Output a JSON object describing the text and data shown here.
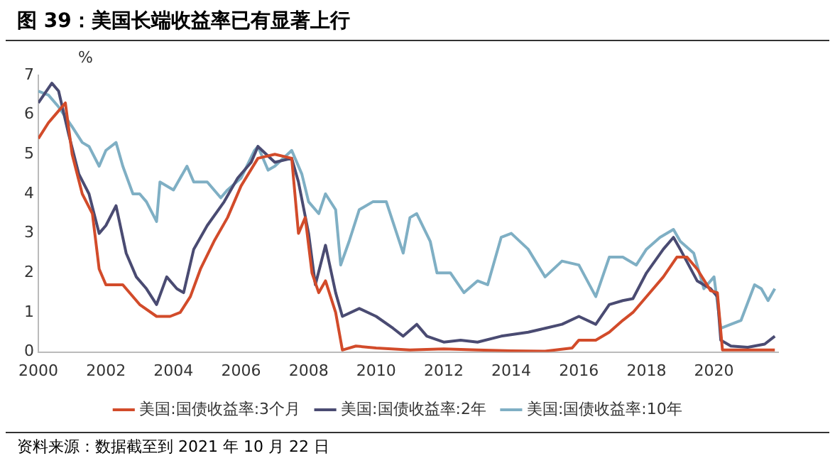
{
  "chart_data": {
    "type": "line",
    "title": "图 39：美国长端收益率已有显著上行",
    "ylabel": "%",
    "annotations": [
      "资料来源：数据截至到 2021 年 10 月 22 日"
    ],
    "xlim": [
      2000,
      2021.9
    ],
    "xticks": [
      2000,
      2002,
      2004,
      2006,
      2008,
      2010,
      2012,
      2014,
      2016,
      2018,
      2020
    ],
    "ylim": [
      0,
      7
    ],
    "yticks": [
      0,
      1,
      2,
      3,
      4,
      5,
      6,
      7
    ],
    "grid": false,
    "legend": "bottom",
    "marker": "none",
    "line_style": "solid",
    "series": [
      {
        "name": "美国:国债收益率:3个月",
        "color": "#d24b2a",
        "x": [
          2000.0,
          2000.3,
          2000.5,
          2000.8,
          2001.0,
          2001.3,
          2001.6,
          2001.8,
          2002.0,
          2002.5,
          2003.0,
          2003.5,
          2003.9,
          2004.2,
          2004.5,
          2004.8,
          2005.2,
          2005.6,
          2006.0,
          2006.5,
          2007.0,
          2007.5,
          2007.7,
          2007.9,
          2008.1,
          2008.3,
          2008.5,
          2008.8,
          2009.0,
          2009.4,
          2010.0,
          2011.0,
          2012.0,
          2013.0,
          2014.0,
          2015.0,
          2015.8,
          2016.0,
          2016.5,
          2016.9,
          2017.3,
          2017.6,
          2018.0,
          2018.5,
          2018.9,
          2019.2,
          2019.5,
          2019.9,
          2020.1,
          2020.25,
          2021.0,
          2021.8
        ],
        "values": [
          5.4,
          5.8,
          6.0,
          6.3,
          5.0,
          4.0,
          3.5,
          2.1,
          1.7,
          1.7,
          1.2,
          0.9,
          0.9,
          1.0,
          1.4,
          2.1,
          2.8,
          3.4,
          4.2,
          4.9,
          5.0,
          4.9,
          3.0,
          3.4,
          2.0,
          1.5,
          1.8,
          1.0,
          0.05,
          0.15,
          0.1,
          0.05,
          0.08,
          0.05,
          0.03,
          0.02,
          0.1,
          0.3,
          0.3,
          0.5,
          0.8,
          1.0,
          1.4,
          1.9,
          2.4,
          2.4,
          2.1,
          1.55,
          1.5,
          0.05,
          0.05,
          0.05
        ]
      },
      {
        "name": "美国:国债收益率:2年",
        "color": "#4a4b72",
        "x": [
          2000.0,
          2000.4,
          2000.6,
          2000.9,
          2001.2,
          2001.5,
          2001.8,
          2002.0,
          2002.3,
          2002.6,
          2002.9,
          2003.2,
          2003.5,
          2003.8,
          2004.1,
          2004.3,
          2004.6,
          2005.0,
          2005.5,
          2005.9,
          2006.3,
          2006.5,
          2007.0,
          2007.5,
          2007.7,
          2008.0,
          2008.2,
          2008.5,
          2008.8,
          2009.0,
          2009.5,
          2010.0,
          2010.5,
          2010.8,
          2011.2,
          2011.5,
          2012.0,
          2012.5,
          2013.0,
          2013.7,
          2014.5,
          2015.0,
          2015.5,
          2016.0,
          2016.5,
          2016.9,
          2017.3,
          2017.6,
          2018.0,
          2018.5,
          2018.8,
          2019.0,
          2019.5,
          2019.9,
          2020.1,
          2020.2,
          2020.5,
          2021.0,
          2021.5,
          2021.8
        ],
        "values": [
          6.3,
          6.8,
          6.6,
          5.5,
          4.5,
          4.0,
          3.0,
          3.2,
          3.7,
          2.5,
          1.9,
          1.6,
          1.2,
          1.9,
          1.6,
          1.5,
          2.6,
          3.2,
          3.8,
          4.4,
          4.8,
          5.2,
          4.8,
          4.9,
          4.3,
          3.0,
          1.7,
          2.7,
          1.5,
          0.9,
          1.1,
          0.9,
          0.6,
          0.4,
          0.7,
          0.4,
          0.25,
          0.3,
          0.25,
          0.4,
          0.5,
          0.6,
          0.7,
          0.9,
          0.7,
          1.2,
          1.3,
          1.35,
          2.0,
          2.6,
          2.9,
          2.6,
          1.8,
          1.6,
          1.4,
          0.3,
          0.15,
          0.12,
          0.2,
          0.4
        ]
      },
      {
        "name": "美国:国债收益率:10年",
        "color": "#7fafc4",
        "x": [
          2000.0,
          2000.3,
          2000.6,
          2001.0,
          2001.3,
          2001.5,
          2001.8,
          2002.0,
          2002.3,
          2002.5,
          2002.8,
          2003.0,
          2003.2,
          2003.5,
          2003.6,
          2004.0,
          2004.4,
          2004.6,
          2005.0,
          2005.4,
          2005.6,
          2006.0,
          2006.4,
          2006.5,
          2006.8,
          2007.0,
          2007.5,
          2007.8,
          2008.0,
          2008.3,
          2008.5,
          2008.8,
          2008.95,
          2009.2,
          2009.5,
          2009.9,
          2010.3,
          2010.8,
          2011.0,
          2011.2,
          2011.6,
          2011.8,
          2012.2,
          2012.6,
          2013.0,
          2013.3,
          2013.7,
          2014.0,
          2014.5,
          2015.0,
          2015.5,
          2016.0,
          2016.5,
          2016.9,
          2017.3,
          2017.7,
          2018.0,
          2018.4,
          2018.8,
          2019.0,
          2019.4,
          2019.7,
          2020.0,
          2020.2,
          2020.5,
          2020.8,
          2021.2,
          2021.4,
          2021.6,
          2021.8
        ],
        "values": [
          6.6,
          6.5,
          6.2,
          5.7,
          5.3,
          5.2,
          4.7,
          5.1,
          5.3,
          4.7,
          4.0,
          4.0,
          3.8,
          3.3,
          4.3,
          4.1,
          4.7,
          4.3,
          4.3,
          3.9,
          4.1,
          4.4,
          5.1,
          5.2,
          4.6,
          4.7,
          5.1,
          4.5,
          3.8,
          3.5,
          4.0,
          3.6,
          2.2,
          2.8,
          3.6,
          3.8,
          3.8,
          2.5,
          3.4,
          3.5,
          2.8,
          2.0,
          2.0,
          1.5,
          1.8,
          1.7,
          2.9,
          3.0,
          2.6,
          1.9,
          2.3,
          2.2,
          1.4,
          2.4,
          2.4,
          2.2,
          2.6,
          2.9,
          3.1,
          2.8,
          2.5,
          1.6,
          1.9,
          0.6,
          0.7,
          0.8,
          1.7,
          1.6,
          1.3,
          1.6
        ]
      }
    ]
  }
}
